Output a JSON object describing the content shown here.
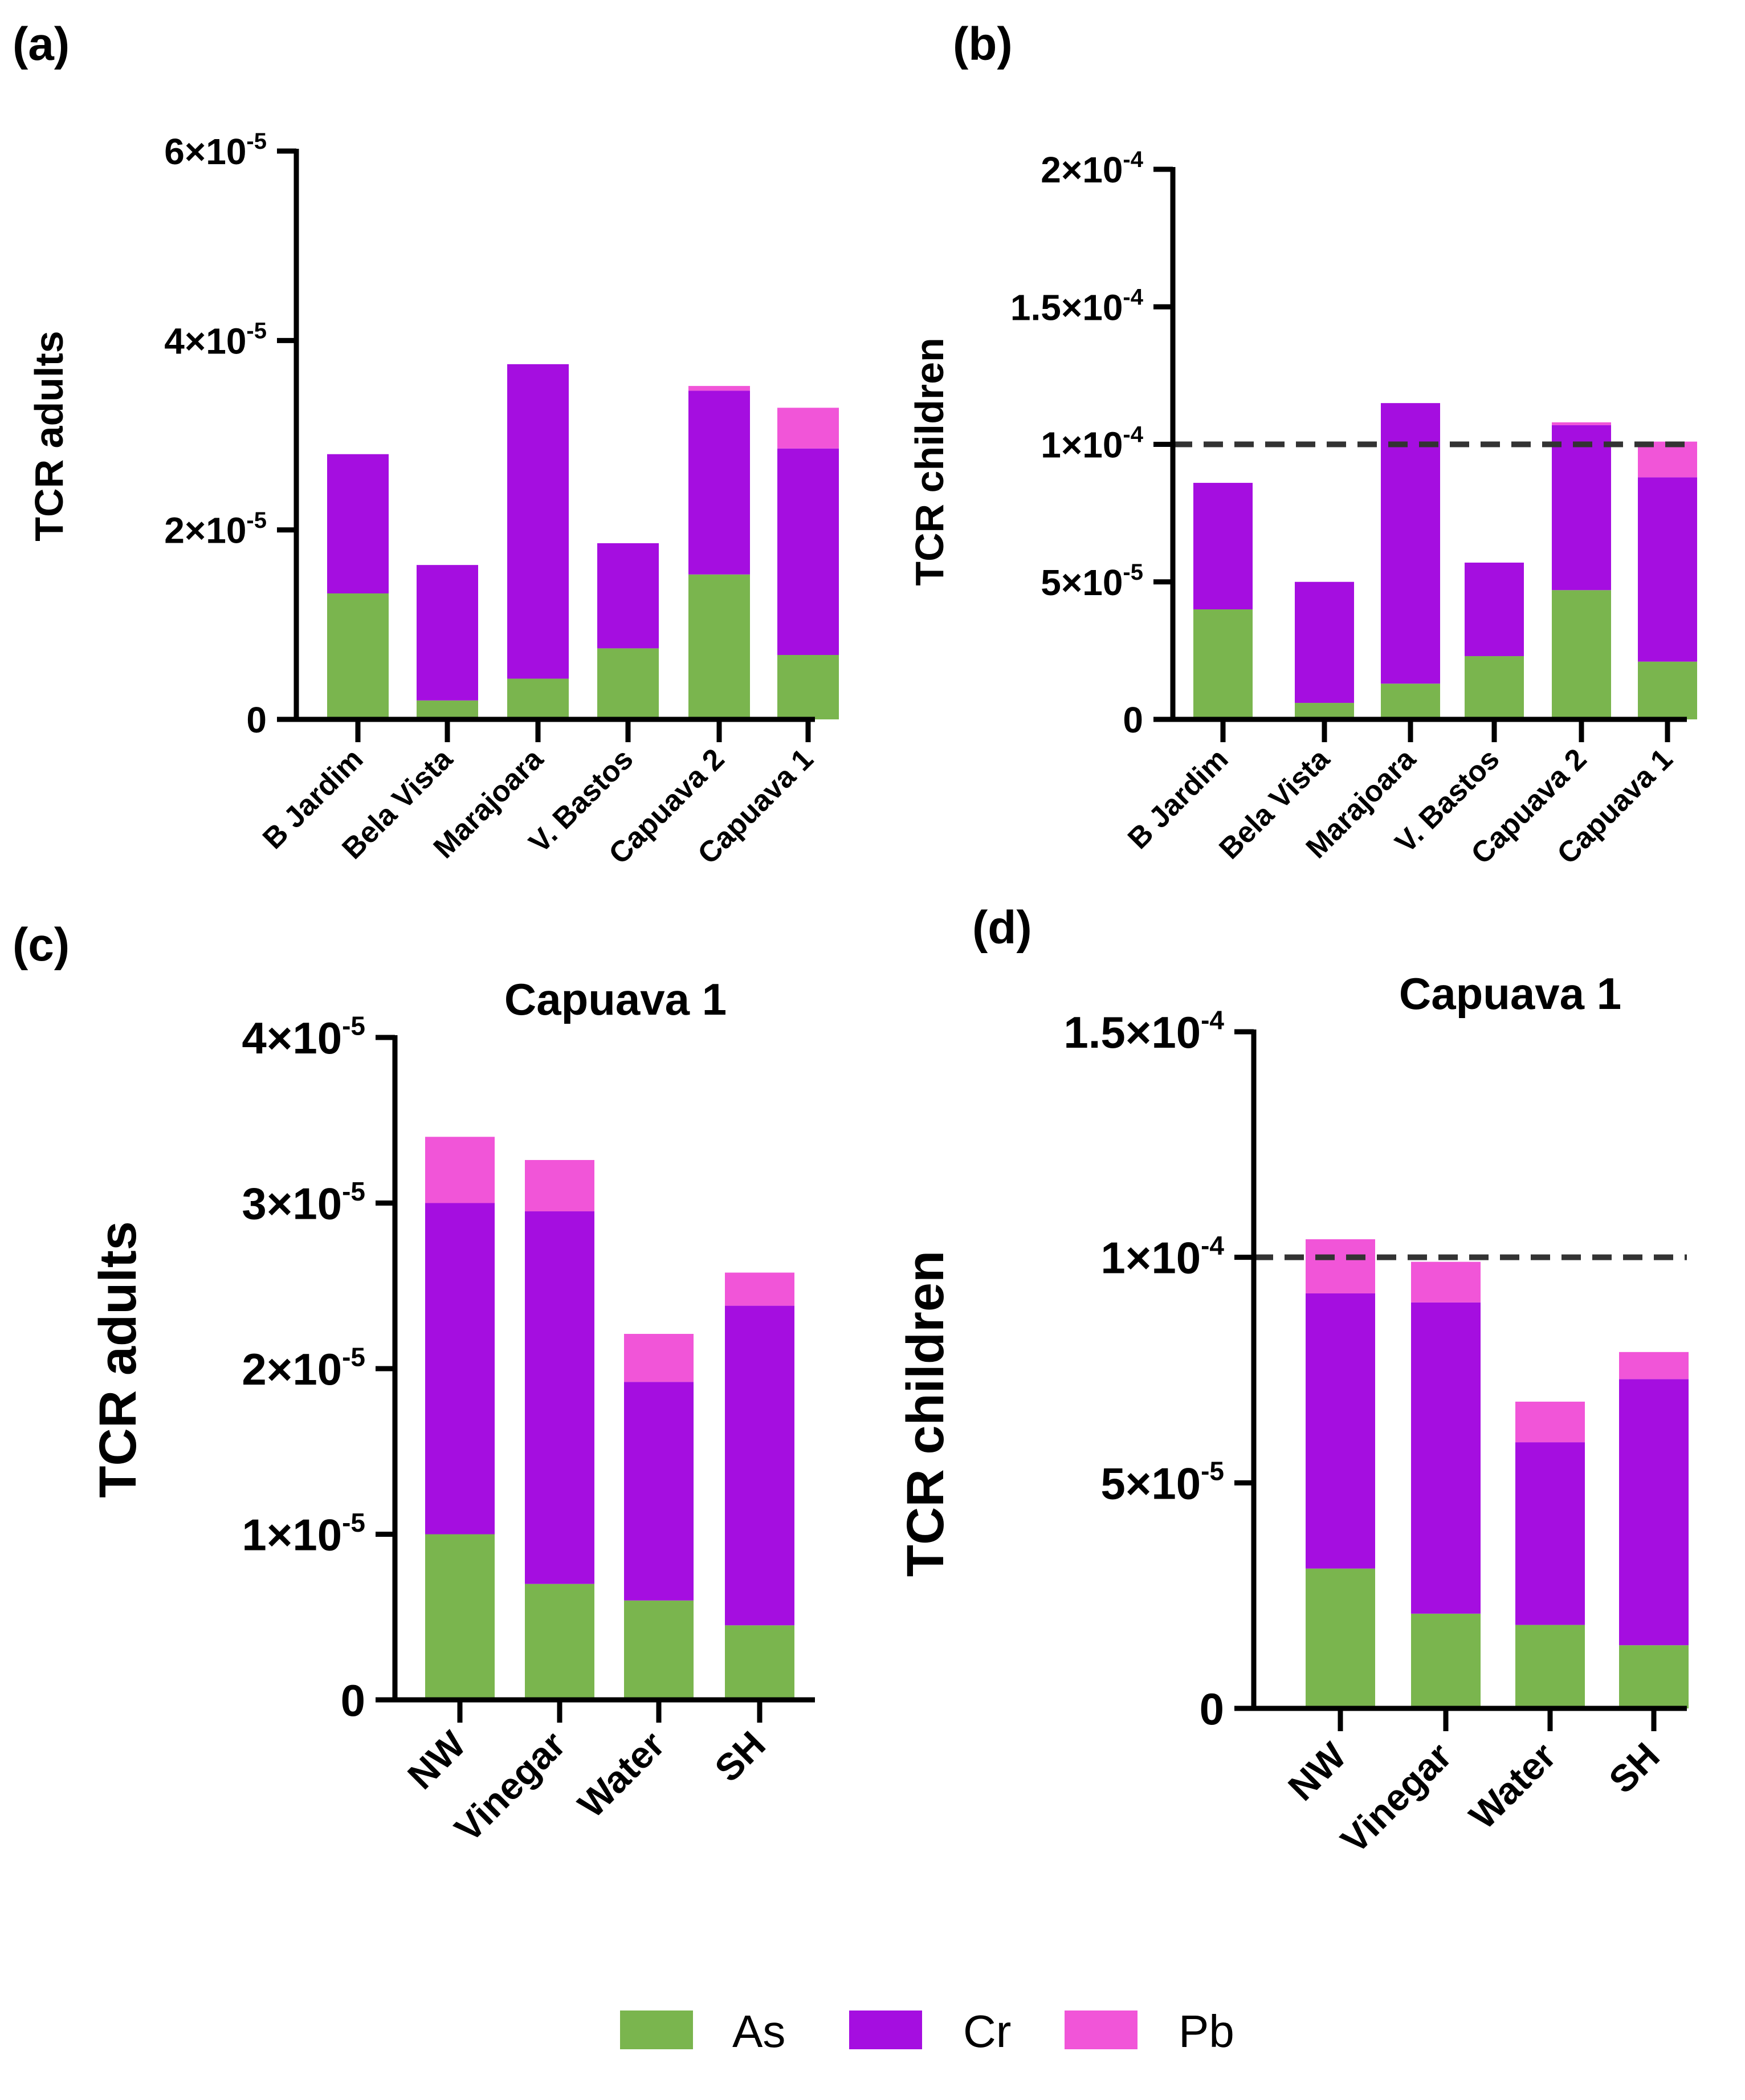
{
  "colors": {
    "As": "#7ab54e",
    "Cr": "#a50ee0",
    "Pb": "#f155d8",
    "threshold": "#333333"
  },
  "legend": [
    {
      "name": "As",
      "color": "#7ab54e"
    },
    {
      "name": "Cr",
      "color": "#a50ee0"
    },
    {
      "name": "Pb",
      "color": "#f155d8"
    }
  ],
  "chart_data": [
    {
      "panel": "(a)",
      "type": "bar",
      "stacked": true,
      "title": "",
      "ylabel": "TCR adults",
      "xlabel": "",
      "ylim": [
        0,
        6e-05
      ],
      "yticks": [
        {
          "value": 0,
          "mantissa": "0",
          "exp": ""
        },
        {
          "value": 2e-05,
          "mantissa": "2×10",
          "exp": "-5"
        },
        {
          "value": 4e-05,
          "mantissa": "4×10",
          "exp": "-5"
        },
        {
          "value": 6e-05,
          "mantissa": "6×10",
          "exp": "-5"
        }
      ],
      "categories": [
        "B Jardim",
        "Bela Vista",
        "Marajoara",
        "V. Bastos",
        "Capuava 2",
        "Capuava 1"
      ],
      "series": [
        {
          "name": "As",
          "values": [
            1.33e-05,
            2e-06,
            4.3e-06,
            7.5e-06,
            1.53e-05,
            6.8e-06
          ]
        },
        {
          "name": "Cr",
          "values": [
            1.47e-05,
            1.43e-05,
            3.32e-05,
            1.11e-05,
            1.94e-05,
            2.18e-05
          ]
        },
        {
          "name": "Pb",
          "values": [
            0.0,
            0.0,
            0.0,
            0.0,
            5e-07,
            4.3e-06
          ]
        }
      ]
    },
    {
      "panel": "(b)",
      "type": "bar",
      "stacked": true,
      "title": "",
      "ylabel": "TCR children",
      "xlabel": "",
      "ylim": [
        0,
        0.0002
      ],
      "yticks": [
        {
          "value": 0,
          "mantissa": "0",
          "exp": ""
        },
        {
          "value": 5e-05,
          "mantissa": "5×10",
          "exp": "-5"
        },
        {
          "value": 0.0001,
          "mantissa": "1×10",
          "exp": "-4"
        },
        {
          "value": 0.00015,
          "mantissa": "1.5×10",
          "exp": "-4"
        },
        {
          "value": 0.0002,
          "mantissa": "2×10",
          "exp": "-4"
        }
      ],
      "threshold": 0.0001,
      "categories": [
        "B Jardim",
        "Bela Vista",
        "Marajoara",
        "V. Bastos",
        "Capuava 2",
        "Capuava 1"
      ],
      "series": [
        {
          "name": "As",
          "values": [
            4e-05,
            6e-06,
            1.3e-05,
            2.3e-05,
            4.7e-05,
            2.1e-05
          ]
        },
        {
          "name": "Cr",
          "values": [
            4.6e-05,
            4.4e-05,
            0.000102,
            3.4e-05,
            6e-05,
            6.7e-05
          ]
        },
        {
          "name": "Pb",
          "values": [
            0.0,
            0.0,
            0.0,
            0.0,
            1e-06,
            1.3e-05
          ]
        }
      ]
    },
    {
      "panel": "(c)",
      "type": "bar",
      "stacked": true,
      "title": "Capuava 1",
      "ylabel": "TCR adults",
      "xlabel": "",
      "ylim": [
        0,
        4e-05
      ],
      "yticks": [
        {
          "value": 0,
          "mantissa": "0",
          "exp": ""
        },
        {
          "value": 1e-05,
          "mantissa": "1×10",
          "exp": "-5"
        },
        {
          "value": 2e-05,
          "mantissa": "2×10",
          "exp": "-5"
        },
        {
          "value": 3e-05,
          "mantissa": "3×10",
          "exp": "-5"
        },
        {
          "value": 4e-05,
          "mantissa": "4×10",
          "exp": "-5"
        }
      ],
      "categories": [
        "NW",
        "Vinegar",
        "Water",
        "SH"
      ],
      "series": [
        {
          "name": "As",
          "values": [
            1e-05,
            7e-06,
            6e-06,
            4.5e-06
          ]
        },
        {
          "name": "Cr",
          "values": [
            2e-05,
            2.25e-05,
            1.32e-05,
            1.93e-05
          ]
        },
        {
          "name": "Pb",
          "values": [
            4e-06,
            3.1e-06,
            2.9e-06,
            2e-06
          ]
        }
      ]
    },
    {
      "panel": "(d)",
      "type": "bar",
      "stacked": true,
      "title": "Capuava 1",
      "ylabel": "TCR children",
      "xlabel": "",
      "ylim": [
        0,
        0.00015
      ],
      "yticks": [
        {
          "value": 0,
          "mantissa": "0",
          "exp": ""
        },
        {
          "value": 5e-05,
          "mantissa": "5×10",
          "exp": "-5"
        },
        {
          "value": 0.0001,
          "mantissa": "1×10",
          "exp": "-4"
        },
        {
          "value": 0.00015,
          "mantissa": "1.5×10",
          "exp": "-4"
        }
      ],
      "threshold": 0.0001,
      "categories": [
        "NW",
        "Vinegar",
        "Water",
        "SH"
      ],
      "series": [
        {
          "name": "As",
          "values": [
            3.1e-05,
            2.1e-05,
            1.85e-05,
            1.4e-05
          ]
        },
        {
          "name": "Cr",
          "values": [
            6.1e-05,
            6.9e-05,
            4.05e-05,
            5.9e-05
          ]
        },
        {
          "name": "Pb",
          "values": [
            1.2e-05,
            9e-06,
            9e-06,
            6e-06
          ]
        }
      ]
    }
  ]
}
